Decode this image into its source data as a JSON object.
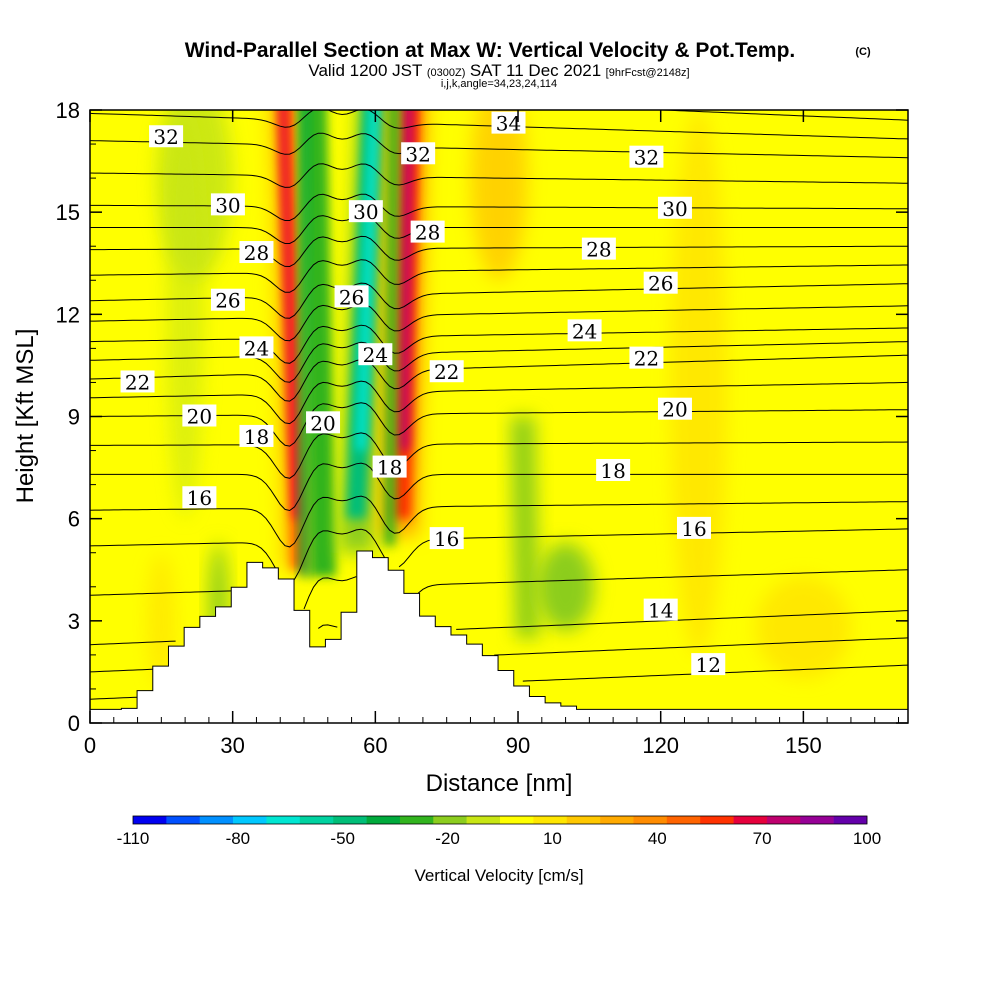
{
  "title": {
    "main": "Wind-Parallel Section at Max W: Vertical Velocity & Pot.Temp.",
    "copyright": "(C)",
    "valid_prefix": "Valid 1200 JST",
    "valid_utc": "(0300Z)",
    "valid_date": "SAT 11 Dec 2021",
    "forecast": "[9hrFcst@2148z]",
    "indices": "i,j,k,angle=34,23,24,114"
  },
  "chart_data": {
    "type": "heatmap",
    "xlabel": "Distance [nm]",
    "ylabel": "Height [Kft MSL]",
    "xlim": [
      0,
      172
    ],
    "ylim": [
      0,
      18
    ],
    "x_ticks": [
      0,
      30,
      60,
      90,
      120,
      150
    ],
    "y_ticks": [
      0,
      3,
      6,
      9,
      12,
      15,
      18
    ],
    "colorbar": {
      "label": "Vertical Velocity [cm/s]",
      "tick_labels": [
        "-110",
        "-80",
        "-50",
        "-20",
        "10",
        "40",
        "70",
        "100"
      ],
      "tick_values": [
        -110,
        -80,
        -50,
        -20,
        10,
        40,
        70,
        100
      ],
      "colors": [
        "#0000f0",
        "#0050ff",
        "#0090ff",
        "#00c8ff",
        "#00e6d2",
        "#00d2a0",
        "#00be78",
        "#00aa3c",
        "#32b41e",
        "#8ccd1e",
        "#c8e614",
        "#ffff00",
        "#ffe600",
        "#ffc800",
        "#ffaa00",
        "#ff8c00",
        "#ff6400",
        "#ff3200",
        "#e6003c",
        "#be006e",
        "#960096",
        "#6400aa"
      ]
    },
    "terrain_profile": [
      [
        0,
        0.4
      ],
      [
        8,
        0.4
      ],
      [
        10.5,
        0.7
      ],
      [
        13,
        1.3
      ],
      [
        16,
        1.9
      ],
      [
        19,
        2.4
      ],
      [
        22,
        2.9
      ],
      [
        28,
        3.4
      ],
      [
        32,
        4.1
      ],
      [
        35,
        4.8
      ],
      [
        41,
        4.3
      ],
      [
        46,
        2.9
      ],
      [
        48.5,
        2.0
      ],
      [
        52,
        2.6
      ],
      [
        55,
        3.4
      ],
      [
        58,
        5.2
      ],
      [
        66,
        4.3
      ],
      [
        69,
        3.4
      ],
      [
        72,
        3.0
      ],
      [
        76,
        2.7
      ],
      [
        80,
        2.4
      ],
      [
        84,
        2.0
      ],
      [
        87,
        1.6
      ],
      [
        90,
        1.2
      ],
      [
        92,
        0.9
      ],
      [
        97,
        0.6
      ],
      [
        104,
        0.4
      ],
      [
        172,
        0.4
      ]
    ],
    "vertical_velocity_features": [
      {
        "type": "updraft",
        "x": 42,
        "y_range": [
          4.5,
          18
        ],
        "max": 90
      },
      {
        "type": "downdraft",
        "x": 48,
        "y_range": [
          4.3,
          18
        ],
        "min": -30
      },
      {
        "type": "downdraft",
        "x": 58,
        "y_range": [
          5.0,
          18
        ],
        "min": -50
      },
      {
        "type": "updraft",
        "x": 66,
        "y_range": [
          5.5,
          18
        ],
        "max": 100
      },
      {
        "type": "downdraft",
        "x": 91,
        "y_range": [
          2.5,
          9
        ],
        "min": -20
      }
    ],
    "potential_temperature_labels": [
      {
        "text": "32",
        "x": 16,
        "y": 17.2
      },
      {
        "text": "34",
        "x": 88,
        "y": 17.6
      },
      {
        "text": "32",
        "x": 69,
        "y": 16.7
      },
      {
        "text": "32",
        "x": 117,
        "y": 16.6
      },
      {
        "text": "30",
        "x": 29,
        "y": 15.2
      },
      {
        "text": "30",
        "x": 58,
        "y": 15.0
      },
      {
        "text": "30",
        "x": 123,
        "y": 15.1
      },
      {
        "text": "28",
        "x": 35,
        "y": 13.8
      },
      {
        "text": "28",
        "x": 71,
        "y": 14.4
      },
      {
        "text": "28",
        "x": 107,
        "y": 13.9
      },
      {
        "text": "26",
        "x": 29,
        "y": 12.4
      },
      {
        "text": "26",
        "x": 55,
        "y": 12.5
      },
      {
        "text": "26",
        "x": 120,
        "y": 12.9
      },
      {
        "text": "24",
        "x": 35,
        "y": 11.0
      },
      {
        "text": "24",
        "x": 60,
        "y": 10.8
      },
      {
        "text": "24",
        "x": 104,
        "y": 11.5
      },
      {
        "text": "22",
        "x": 10,
        "y": 10.0
      },
      {
        "text": "22",
        "x": 75,
        "y": 10.3
      },
      {
        "text": "22",
        "x": 117,
        "y": 10.7
      },
      {
        "text": "20",
        "x": 23,
        "y": 9.0
      },
      {
        "text": "20",
        "x": 49,
        "y": 8.8
      },
      {
        "text": "20",
        "x": 123,
        "y": 9.2
      },
      {
        "text": "18",
        "x": 35,
        "y": 8.4
      },
      {
        "text": "18",
        "x": 63,
        "y": 7.5
      },
      {
        "text": "18",
        "x": 110,
        "y": 7.4
      },
      {
        "text": "16",
        "x": 23,
        "y": 6.6
      },
      {
        "text": "16",
        "x": 75,
        "y": 5.4
      },
      {
        "text": "16",
        "x": 127,
        "y": 5.7
      },
      {
        "text": "14",
        "x": 120,
        "y": 3.3
      },
      {
        "text": "12",
        "x": 130,
        "y": 1.7
      }
    ],
    "potential_temperature_levels": [
      {
        "v": 12,
        "ya": 0.7,
        "yb": 1.7
      },
      {
        "v": 14,
        "ya": 2.3,
        "yb": 3.3
      },
      {
        "v": 16,
        "ya": 5.2,
        "yb": 5.7
      },
      {
        "v": 18,
        "ya": 7.3,
        "yb": 7.3
      },
      {
        "v": 20,
        "ya": 9.0,
        "yb": 9.2
      },
      {
        "v": 22,
        "ya": 10.1,
        "yb": 10.8
      },
      {
        "v": 24,
        "ya": 11.2,
        "yb": 11.6
      },
      {
        "v": 26,
        "ya": 12.4,
        "yb": 12.9
      },
      {
        "v": 28,
        "ya": 13.9,
        "yb": 14.0
      },
      {
        "v": 30,
        "ya": 15.2,
        "yb": 15.1
      },
      {
        "v": 32,
        "ya": 17.1,
        "yb": 16.6
      },
      {
        "v": 34,
        "ya": 18.7,
        "yb": 17.7
      }
    ]
  }
}
